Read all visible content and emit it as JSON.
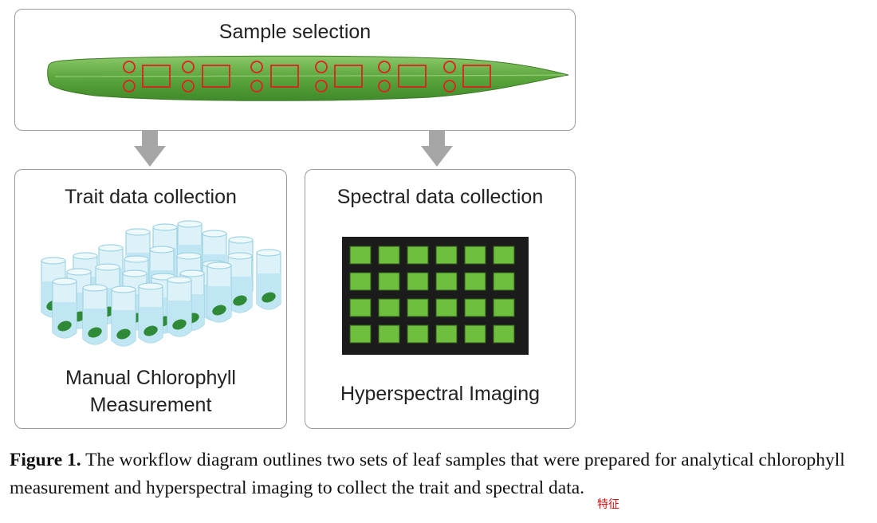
{
  "panels": {
    "top": {
      "title": "Sample selection"
    },
    "left": {
      "title": "Trait data collection",
      "label_line1": "Manual Chlorophyll",
      "label_line2": "Measurement"
    },
    "right": {
      "title": "Spectral data collection",
      "label": "Hyperspectral Imaging"
    }
  },
  "caption": {
    "label": "Figure 1.",
    "text_before": " The workflow diagram outlines two sets of leaf samples that were prepared for analytical chlorophyll measurement and hyperspectral imaging to collect the ",
    "word_trait": "trait",
    "text_after": " and spectral data."
  },
  "annotation": "特征",
  "colors": {
    "leaf_green": "#6ab04c",
    "marker_red": "#e02020",
    "tray_black": "#1b1b1b",
    "well_green": "#6fbf3f",
    "tube_blue": "#bfe6f2",
    "arrow_gray": "#a6a6a6"
  },
  "icons": {
    "leaf": "leaf-illustration",
    "tubes": "test-tubes-illustration",
    "tray": "hyperspectral-tray-illustration"
  }
}
